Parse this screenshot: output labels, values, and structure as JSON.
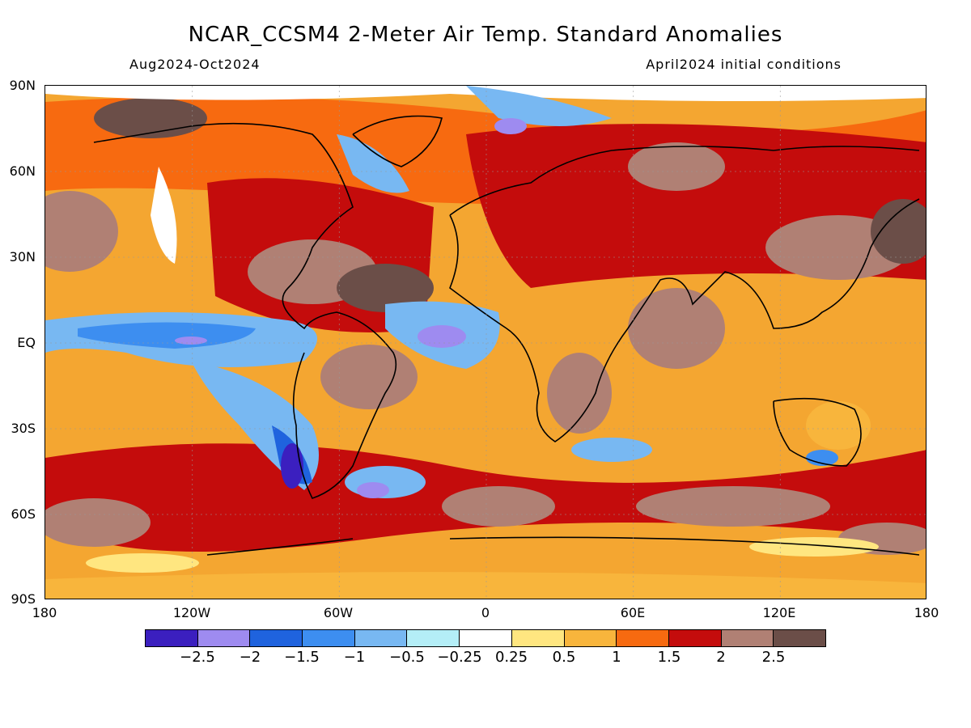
{
  "title": "NCAR_CCSM4 2-Meter Air Temp. Standard Anomalies",
  "period": "Aug2024-Oct2024",
  "init": "April2024 initial conditions",
  "lat_labels": [
    "90N",
    "60N",
    "30N",
    "EQ",
    "30S",
    "60S",
    "90S"
  ],
  "lon_labels": [
    "180",
    "120W",
    "60W",
    "0",
    "60E",
    "120E",
    "180"
  ],
  "colorbar": {
    "colors": [
      "#3b1fbf",
      "#9e8bf0",
      "#1f63de",
      "#3d8ef0",
      "#78b8f2",
      "#b4eef7",
      "#ffffff",
      "#ffe680",
      "#f8b53c",
      "#f76a10",
      "#c40c0c",
      "#b08074",
      "#6b4e48"
    ],
    "labels": [
      "−2.5",
      "−2",
      "−1.5",
      "−1",
      "−0.5",
      "−0.25",
      "0.25",
      "0.5",
      "1",
      "1.5",
      "2",
      "2.5"
    ]
  }
}
